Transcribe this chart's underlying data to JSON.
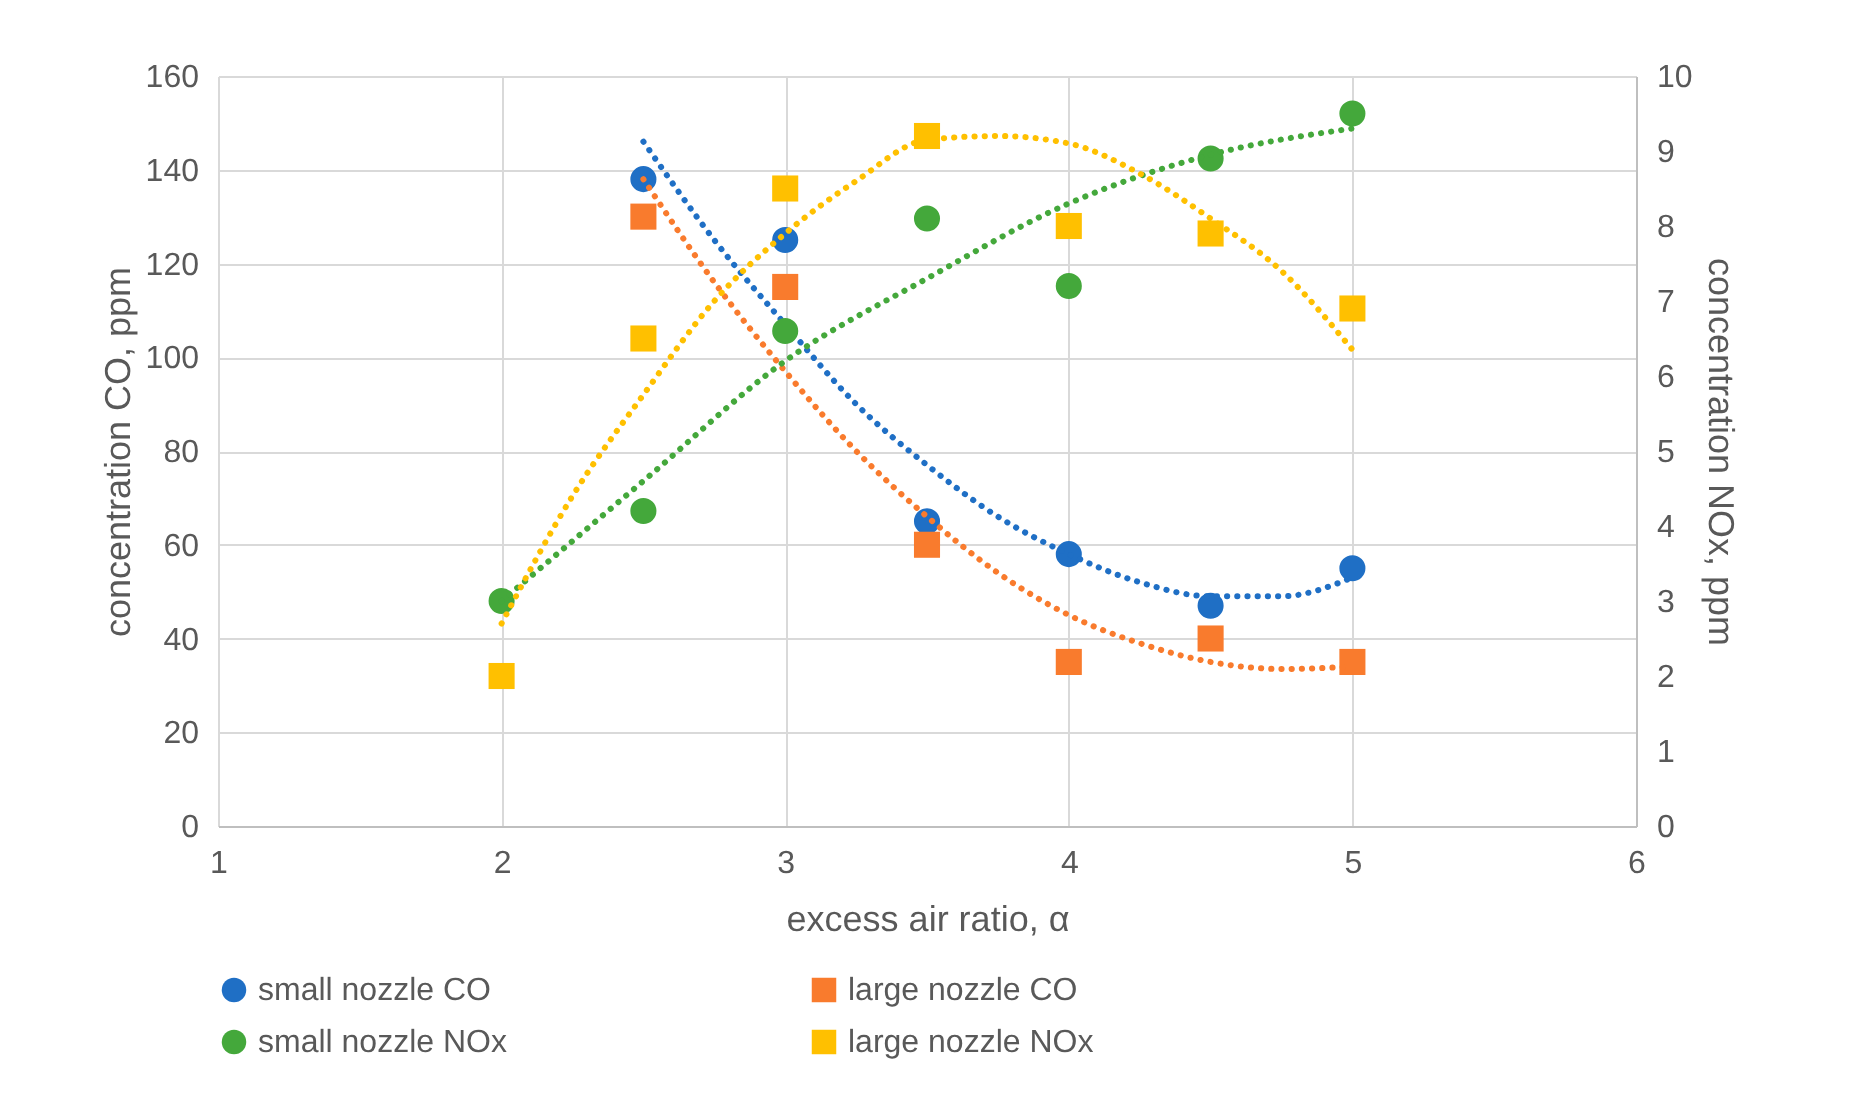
{
  "chart_data": {
    "type": "scatter",
    "xlabel": "excess air ratio, α",
    "ylabel": "concentration CO, ppm",
    "y2label": "concentration NOx, ppm",
    "x": [
      2,
      2.5,
      3,
      3.5,
      4,
      4.5,
      5
    ],
    "series": [
      {
        "name": "small nozzle CO",
        "color": "#1f6fc5",
        "marker": "circle",
        "values": [
          null,
          138,
          125,
          65,
          58,
          47,
          55
        ]
      },
      {
        "name": "large nozzle CO",
        "color": "#f97b2d",
        "marker": "square",
        "values": [
          null,
          130,
          115,
          60,
          35,
          40,
          35
        ]
      },
      {
        "name": "small nozzle NOx",
        "color": "#44a83b",
        "marker": "circle",
        "axis": "y2",
        "values": [
          3.0,
          4.2,
          6.6,
          8.1,
          7.2,
          8.9,
          9.5
        ]
      },
      {
        "name": "large nozzle NOx",
        "color": "#ffc000",
        "marker": "square",
        "axis": "y2",
        "values": [
          2.0,
          6.5,
          8.5,
          9.2,
          8.0,
          7.9,
          6.9
        ]
      },
      {
        "type": "line",
        "color": "#1f6fc5",
        "line_style": "dotted",
        "x": [
          2.5,
          2.75,
          3,
          3.25,
          3.5,
          3.75,
          4,
          4.25,
          4.5,
          4.75,
          5
        ],
        "values": [
          146,
          125,
          107,
          90,
          77,
          66,
          58,
          52,
          49,
          49,
          53
        ]
      },
      {
        "type": "line",
        "color": "#f97b2d",
        "line_style": "dotted",
        "x": [
          2.5,
          2.75,
          3,
          3.25,
          3.5,
          3.75,
          4,
          4.25,
          4.5,
          4.75,
          5
        ],
        "values": [
          138,
          116,
          97,
          80,
          66,
          54,
          45,
          39,
          35,
          33.5,
          34
        ]
      },
      {
        "type": "line",
        "color": "#44a83b",
        "line_style": "dotted",
        "axis": "y2",
        "x": [
          2,
          2.5,
          3,
          3.5,
          4,
          4.5,
          5
        ],
        "values": [
          3.0,
          4.6,
          6.2,
          7.3,
          8.3,
          8.95,
          9.3
        ]
      },
      {
        "type": "line",
        "color": "#ffc000",
        "line_style": "dotted",
        "axis": "y2",
        "x": [
          2,
          2.25,
          2.5,
          2.75,
          3,
          3.25,
          3.5,
          3.75,
          4,
          4.25,
          4.5,
          4.75,
          5
        ],
        "values": [
          2.7,
          4.4,
          5.75,
          7.0,
          7.9,
          8.6,
          9.15,
          9.2,
          9.1,
          8.7,
          8.1,
          7.4,
          6.35
        ]
      }
    ],
    "xlim": [
      1,
      6
    ],
    "xticks": [
      1,
      2,
      3,
      4,
      5,
      6
    ],
    "ylim": [
      0,
      160
    ],
    "yticks": [
      0,
      20,
      40,
      60,
      80,
      100,
      120,
      140,
      160
    ],
    "y2lim": [
      0,
      10
    ],
    "y2ticks": [
      0,
      1,
      2,
      3,
      4,
      5,
      6,
      7,
      8,
      9,
      10
    ],
    "grid": true,
    "legend": "bottom"
  }
}
